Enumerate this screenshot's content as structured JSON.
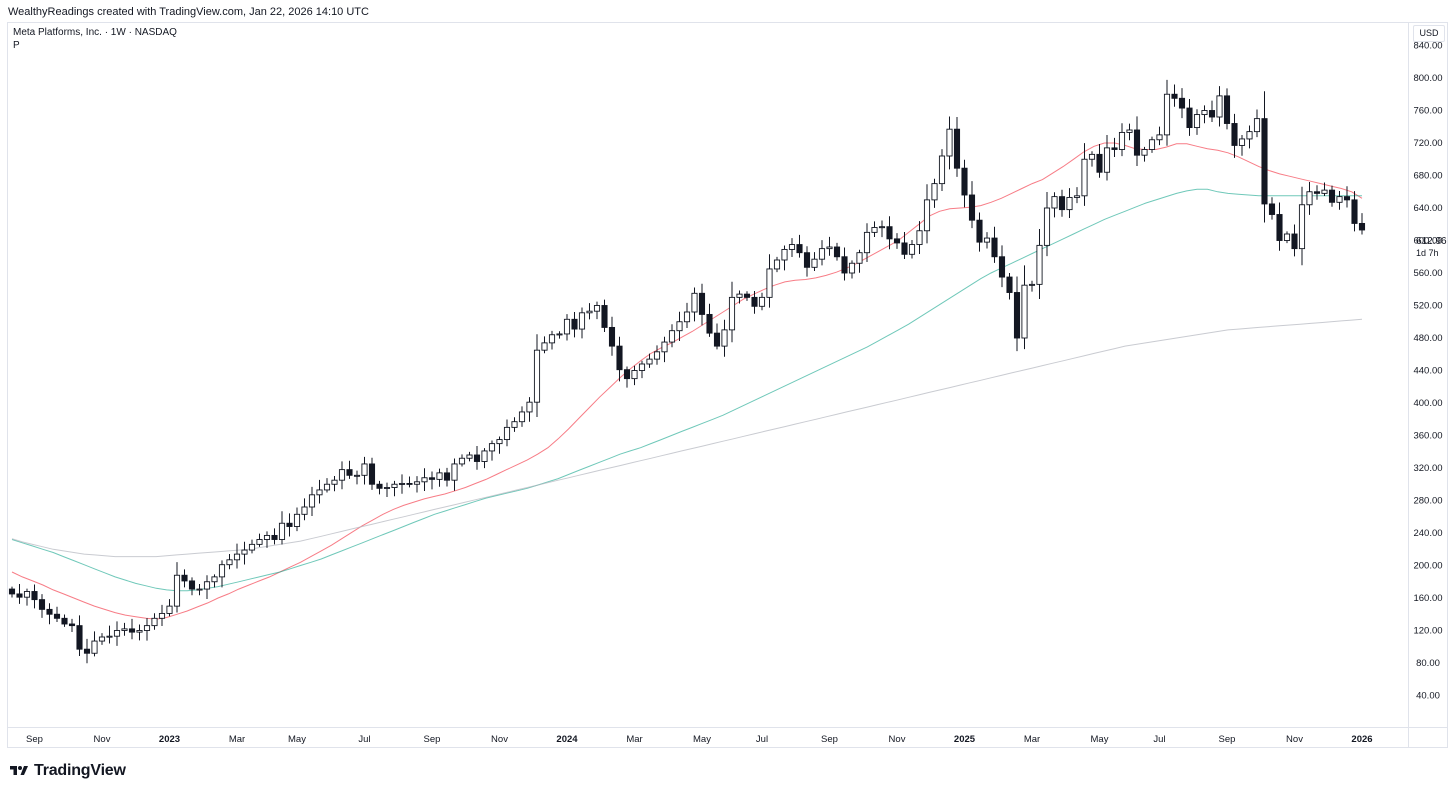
{
  "header": {
    "attribution": "WealthyReadings created with TradingView.com, Jan 22, 2026 14:10 UTC"
  },
  "symbol": {
    "title": "Meta Platforms, Inc. · 1W · NASDAQ",
    "pane_label": "P"
  },
  "price_axis": {
    "currency": "USD",
    "last_price": "612.96",
    "countdown": "1d 7h"
  },
  "footer": {
    "brand": "TradingView"
  },
  "chart_data": {
    "type": "candlestick",
    "interval": "1W",
    "ylim": [
      20,
      860
    ],
    "y_ticks": [
      40,
      80,
      120,
      160,
      200,
      240,
      280,
      320,
      360,
      400,
      440,
      480,
      520,
      560,
      600,
      640,
      680,
      720,
      760,
      800,
      840
    ],
    "y_tick_labels": [
      "40.00",
      "80.00",
      "120.00",
      "160.00",
      "200.00",
      "240.00",
      "280.00",
      "320.00",
      "360.00",
      "400.00",
      "440.00",
      "480.00",
      "520.00",
      "560.00",
      "600.00",
      "640.00",
      "680.00",
      "720.00",
      "760.00",
      "800.00",
      "840.00"
    ],
    "x_tick_labels": [
      {
        "label": "Sep",
        "bold": false,
        "week": 3
      },
      {
        "label": "Nov",
        "bold": false,
        "week": 12
      },
      {
        "label": "2023",
        "bold": true,
        "week": 21
      },
      {
        "label": "Mar",
        "bold": false,
        "week": 30
      },
      {
        "label": "May",
        "bold": false,
        "week": 38
      },
      {
        "label": "Jul",
        "bold": false,
        "week": 47
      },
      {
        "label": "Sep",
        "bold": false,
        "week": 56
      },
      {
        "label": "Nov",
        "bold": false,
        "week": 65
      },
      {
        "label": "2024",
        "bold": true,
        "week": 74
      },
      {
        "label": "Mar",
        "bold": false,
        "week": 83
      },
      {
        "label": "May",
        "bold": false,
        "week": 92
      },
      {
        "label": "Jul",
        "bold": false,
        "week": 100
      },
      {
        "label": "Sep",
        "bold": false,
        "week": 109
      },
      {
        "label": "Nov",
        "bold": false,
        "week": 118
      },
      {
        "label": "2025",
        "bold": true,
        "week": 127
      },
      {
        "label": "Mar",
        "bold": false,
        "week": 136
      },
      {
        "label": "May",
        "bold": false,
        "week": 145
      },
      {
        "label": "Jul",
        "bold": false,
        "week": 153
      },
      {
        "label": "Sep",
        "bold": false,
        "week": 162
      },
      {
        "label": "Nov",
        "bold": false,
        "week": 171
      },
      {
        "label": "2026",
        "bold": true,
        "week": 180
      }
    ],
    "closes": [
      165,
      161,
      168,
      158,
      146,
      140,
      135,
      128,
      126,
      97,
      92,
      107,
      112,
      113,
      120,
      122,
      118,
      120,
      126,
      135,
      141,
      150,
      188,
      181,
      171,
      171,
      180,
      186,
      201,
      207,
      214,
      219,
      226,
      232,
      237,
      232,
      252,
      248,
      263,
      272,
      287,
      293,
      300,
      305,
      318,
      311,
      311,
      325,
      300,
      295,
      296,
      300,
      301,
      300,
      303,
      308,
      306,
      314,
      305,
      325,
      332,
      336,
      328,
      341,
      350,
      355,
      370,
      377,
      389,
      401,
      465,
      474,
      484,
      485,
      503,
      491,
      511,
      513,
      520,
      493,
      470,
      441,
      430,
      440,
      448,
      454,
      463,
      475,
      489,
      500,
      512,
      535,
      509,
      486,
      470,
      490,
      530,
      534,
      530,
      519,
      530,
      565,
      576,
      589,
      595,
      585,
      567,
      577,
      590,
      592,
      580,
      560,
      572,
      585,
      610,
      616,
      617,
      602,
      597,
      583,
      595,
      612,
      650,
      670,
      704,
      737,
      689,
      656,
      625,
      598,
      603,
      580,
      555,
      536,
      480,
      545,
      546,
      594,
      640,
      654,
      638,
      653,
      655,
      700,
      706,
      684,
      714,
      712,
      733,
      736,
      705,
      712,
      724,
      730,
      780,
      775,
      763,
      739,
      755,
      760,
      752,
      778,
      744,
      717,
      725,
      734,
      750,
      645,
      632,
      600,
      608,
      590,
      644,
      660,
      658,
      662,
      647,
      654,
      650,
      621,
      612.96
    ],
    "series": [
      {
        "name": "MA 20",
        "color": "#f23645",
        "values": [
          192,
          186,
          181,
          176,
          170,
          165,
          160,
          155,
          150,
          146,
          142,
          139,
          137,
          135,
          134,
          136,
          140,
          144,
          149,
          154,
          160,
          165,
          171,
          176,
          181,
          186,
          192,
          198,
          204,
          211,
          218,
          225,
          233,
          241,
          249,
          256,
          263,
          269,
          274,
          278,
          282,
          285,
          288,
          292,
          296,
          301,
          306,
          312,
          318,
          324,
          330,
          337,
          345,
          356,
          368,
          381,
          394,
          407,
          419,
          431,
          442,
          452,
          461,
          468,
          474,
          481,
          488,
          496,
          504,
          512,
          520,
          528,
          534,
          540,
          545,
          549,
          551,
          552,
          554,
          557,
          561,
          566,
          572,
          579,
          586,
          593,
          600,
          610,
          620,
          630,
          636,
          639,
          640,
          641,
          643,
          647,
          652,
          658,
          664,
          670,
          675,
          683,
          691,
          700,
          709,
          716,
          720,
          720,
          717,
          713,
          712,
          712,
          715,
          719,
          719,
          716,
          713,
          711,
          708,
          703,
          697,
          691,
          686,
          682,
          679,
          676,
          673,
          670,
          667,
          664,
          660,
          652
        ]
      },
      {
        "name": "MA 50",
        "color": "#22ab94",
        "values": [
          232,
          228,
          224,
          220,
          216,
          211,
          206,
          201,
          196,
          191,
          186,
          182,
          178,
          175,
          172,
          170,
          169,
          169,
          170,
          172,
          174,
          177,
          180,
          183,
          186,
          189,
          192,
          196,
          200,
          204,
          208,
          213,
          218,
          223,
          228,
          233,
          238,
          243,
          248,
          253,
          258,
          263,
          267,
          271,
          275,
          279,
          283,
          286,
          289,
          292,
          295,
          299,
          303,
          307,
          312,
          317,
          322,
          327,
          332,
          337,
          341,
          345,
          350,
          355,
          360,
          365,
          370,
          375,
          380,
          385,
          391,
          397,
          403,
          409,
          415,
          421,
          427,
          433,
          439,
          445,
          451,
          457,
          463,
          469,
          476,
          483,
          490,
          497,
          505,
          513,
          521,
          529,
          537,
          545,
          553,
          560,
          566,
          572,
          578,
          584,
          590,
          596,
          602,
          608,
          614,
          620,
          626,
          631,
          636,
          641,
          646,
          650,
          654,
          658,
          661,
          663,
          663,
          660,
          658,
          657,
          656,
          655,
          655,
          655,
          655,
          655,
          655,
          655,
          655,
          655,
          655,
          655
        ]
      },
      {
        "name": "MA 200",
        "color": "#b2b5be",
        "values": [
          233,
          229,
          226,
          223,
          220,
          218,
          216,
          214,
          213,
          212,
          211,
          211,
          211,
          211,
          211,
          212,
          213,
          214,
          215,
          216,
          217,
          218,
          219,
          220,
          222,
          224,
          226,
          228,
          230,
          233,
          236,
          239,
          242,
          245,
          248,
          251,
          254,
          257,
          260,
          263,
          266,
          269,
          272,
          275,
          278,
          281,
          284,
          287,
          290,
          293,
          296,
          299,
          302,
          305,
          308,
          311,
          314,
          317,
          320,
          323,
          326,
          329,
          332,
          335,
          338,
          341,
          344,
          347,
          350,
          353,
          356,
          359,
          362,
          365,
          368,
          371,
          374,
          377,
          380,
          383,
          386,
          389,
          392,
          395,
          398,
          401,
          404,
          407,
          410,
          413,
          416,
          419,
          422,
          425,
          428,
          431,
          434,
          437,
          440,
          443,
          446,
          449,
          452,
          455,
          458,
          461,
          464,
          467,
          470,
          472,
          474,
          476,
          478,
          480,
          482,
          484,
          486,
          488,
          490,
          491,
          492,
          493,
          494,
          495,
          496,
          497,
          498,
          499,
          500,
          501,
          502,
          503
        ]
      }
    ]
  }
}
